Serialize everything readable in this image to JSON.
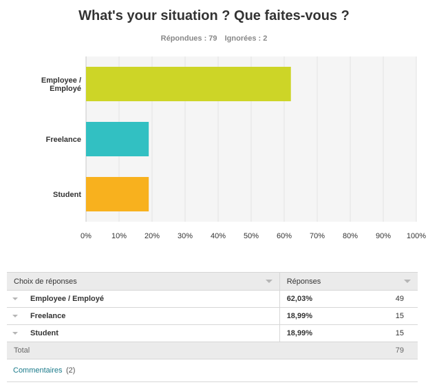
{
  "title": "What's your situation ? Que faites-vous ?",
  "stats": {
    "answered": "Répondues : 79",
    "skipped": "Ignorées : 2"
  },
  "chart_data": {
    "type": "bar",
    "orientation": "horizontal",
    "categories": [
      "Employee / Employé",
      "Freelance",
      "Student"
    ],
    "category_lines": [
      [
        "Employee /",
        "Employé"
      ],
      [
        "Freelance"
      ],
      [
        "Student"
      ]
    ],
    "values": [
      62.03,
      18.99,
      18.99
    ],
    "colors": [
      "#cdd527",
      "#32c0c2",
      "#f8b11e"
    ],
    "xlim": [
      0,
      100
    ],
    "xticks": [
      "0%",
      "10%",
      "20%",
      "30%",
      "40%",
      "50%",
      "60%",
      "70%",
      "80%",
      "90%",
      "100%"
    ],
    "grid": true,
    "legend": false
  },
  "table": {
    "headers": {
      "choice": "Choix de réponses",
      "responses": "Réponses"
    },
    "rows": [
      {
        "label": "Employee / Employé",
        "percent": "62,03%",
        "count": "49"
      },
      {
        "label": "Freelance",
        "percent": "18,99%",
        "count": "15"
      },
      {
        "label": "Student",
        "percent": "18,99%",
        "count": "15"
      }
    ],
    "total": {
      "label": "Total",
      "count": "79"
    }
  },
  "comments": {
    "link": "Commentaires",
    "count": "(2)"
  }
}
